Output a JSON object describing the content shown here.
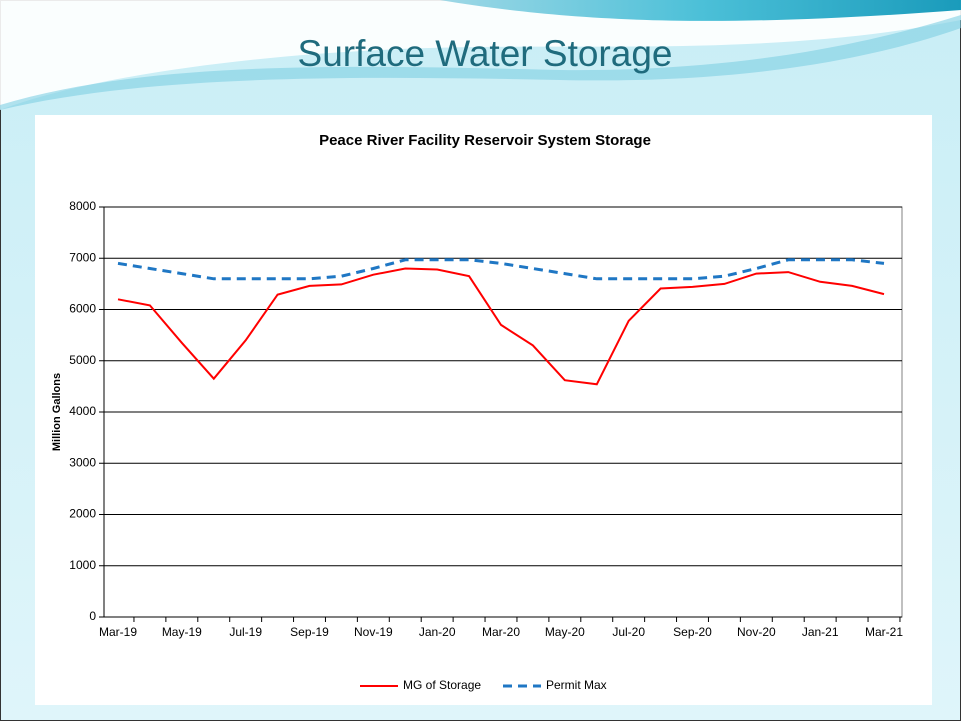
{
  "title": "Surface Water Storage",
  "chart_data": {
    "type": "line",
    "title": "Peace River Facility Reservoir System Storage",
    "y_label": "Million Gallons",
    "categories": [
      "Mar-19",
      null,
      "May-19",
      null,
      "Jul-19",
      null,
      "Sep-19",
      null,
      "Nov-19",
      null,
      "Jan-20",
      null,
      "Mar-20",
      null,
      "May-20",
      null,
      "Jul-20",
      null,
      "Sep-20",
      null,
      "Nov-20",
      null,
      "Jan-21",
      null,
      "Mar-21"
    ],
    "series": [
      {
        "name": "MG of Storage",
        "color": "#ff0000",
        "style": "solid",
        "values": [
          6200,
          6080,
          5350,
          4650,
          5400,
          6290,
          6460,
          6490,
          6680,
          6800,
          6780,
          6650,
          5700,
          5300,
          4620,
          4540,
          5780,
          6410,
          6440,
          6500,
          6700,
          6730,
          6540,
          6460,
          6300
        ]
      },
      {
        "name": "Permit Max",
        "color": "#1f77c4",
        "style": "dashed",
        "values": [
          6900,
          6800,
          6700,
          6600,
          6600,
          6600,
          6600,
          6650,
          6800,
          6970,
          6970,
          6970,
          6900,
          6800,
          6700,
          6600,
          6600,
          6600,
          6600,
          6650,
          6800,
          6970,
          6970,
          6970,
          6900
        ]
      }
    ],
    "ylim": [
      0,
      8000
    ],
    "yticks": [
      0,
      1000,
      2000,
      3000,
      4000,
      5000,
      6000,
      7000,
      8000
    ],
    "grid": true
  }
}
